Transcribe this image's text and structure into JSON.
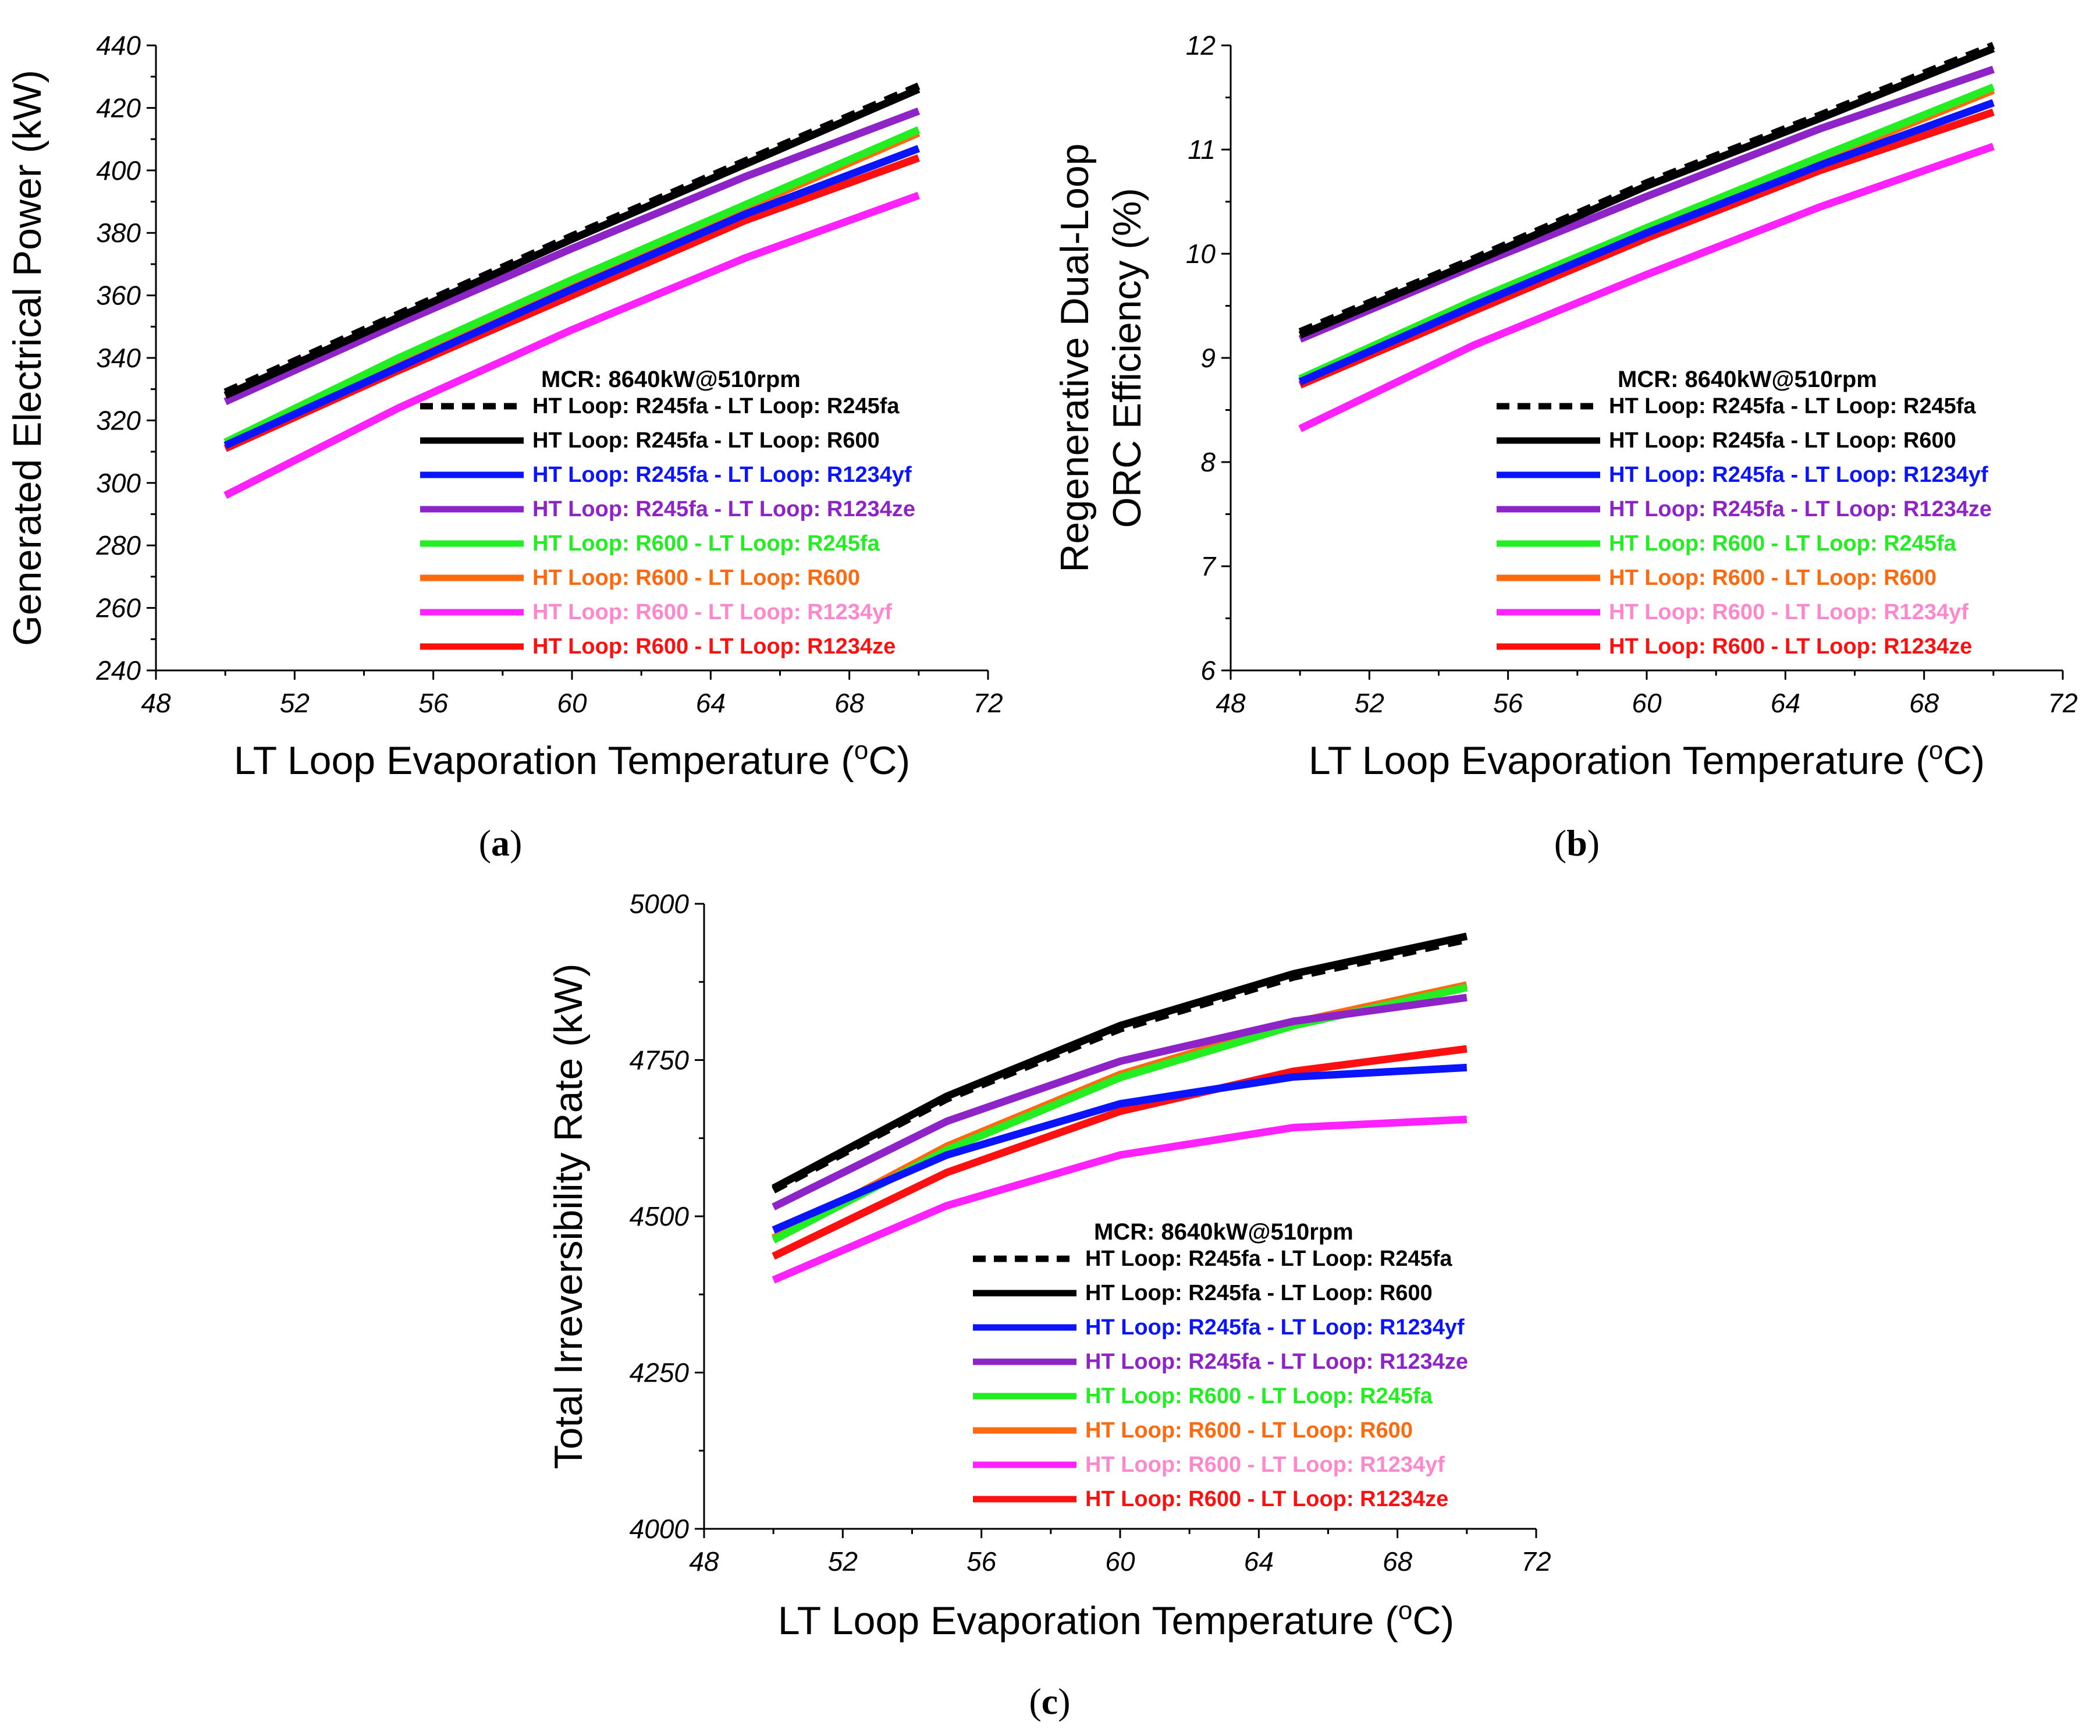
{
  "figure": {
    "legend_title": "MCR: 8640kW@510rpm",
    "xlabel_main": "LT Loop Evaporation Temperature (",
    "xlabel_sup": "o",
    "xlabel_end": "C)"
  },
  "series_style": [
    {
      "name": "HT Loop: R245fa - LT Loop: R245fa",
      "line_color": "#000000",
      "text_color": "#000000",
      "dash": true
    },
    {
      "name": "HT Loop: R245fa - LT Loop: R600",
      "line_color": "#000000",
      "text_color": "#000000",
      "dash": false
    },
    {
      "name": "HT Loop: R245fa - LT Loop: R1234yf",
      "line_color": "#0a14ff",
      "text_color": "#0a14ff",
      "dash": false
    },
    {
      "name": "HT Loop: R245fa - LT Loop: R1234ze",
      "line_color": "#8e24c8",
      "text_color": "#8e24c8",
      "dash": false
    },
    {
      "name": "HT Loop: R600 - LT Loop: R245fa",
      "line_color": "#22ee22",
      "text_color": "#22ee22",
      "dash": false
    },
    {
      "name": "HT Loop: R600 - LT Loop: R600",
      "line_color": "#ff6a10",
      "text_color": "#ff6a10",
      "dash": false
    },
    {
      "name": "HT Loop: R600 - LT Loop: R1234yf",
      "line_color": "#ff22ff",
      "text_color": "#ff88cc",
      "dash": false
    },
    {
      "name": "HT Loop: R600 - LT Loop: R1234ze",
      "line_color": "#ff1010",
      "text_color": "#ff1010",
      "dash": false
    }
  ],
  "chart_data": [
    {
      "id": "a",
      "panel_label": "a",
      "type": "line",
      "ylabel": "Generated Electrical Power (kW)",
      "xlabel": "LT Loop Evaporation Temperature (oC)",
      "xlim": [
        48,
        72
      ],
      "ylim": [
        240,
        440
      ],
      "xticks": [
        48,
        52,
        56,
        60,
        64,
        68,
        72
      ],
      "yticks": [
        240,
        260,
        280,
        300,
        320,
        340,
        360,
        380,
        400,
        420,
        440
      ],
      "x": [
        50,
        55,
        60,
        65,
        70
      ],
      "series": [
        {
          "name": "HT Loop: R245fa - LT Loop: R245fa",
          "values": [
            329,
            354,
            379,
            403,
            427
          ]
        },
        {
          "name": "HT Loop: R245fa - LT Loop: R600",
          "values": [
            328,
            353,
            378,
            402,
            426
          ]
        },
        {
          "name": "HT Loop: R245fa - LT Loop: R1234yf",
          "values": [
            312,
            337,
            362,
            386,
            407
          ]
        },
        {
          "name": "HT Loop: R245fa - LT Loop: R1234ze",
          "values": [
            326,
            351,
            375,
            398,
            419
          ]
        },
        {
          "name": "HT Loop: R600 - LT Loop: R245fa",
          "values": [
            313,
            340,
            365,
            389,
            413
          ]
        },
        {
          "name": "HT Loop: R600 - LT Loop: R600",
          "values": [
            312,
            338,
            363,
            388,
            412
          ]
        },
        {
          "name": "HT Loop: R600 - LT Loop: R1234yf",
          "values": [
            296,
            324,
            349,
            372,
            392
          ]
        },
        {
          "name": "HT Loop: R600 - LT Loop: R1234ze",
          "values": [
            311,
            336,
            360,
            384,
            404
          ]
        }
      ]
    },
    {
      "id": "b",
      "panel_label": "b",
      "type": "line",
      "ylabel_line1": "Regenerative Dual-Loop",
      "ylabel_line2": "ORC Efficiency (%)",
      "xlabel": "LT Loop Evaporation Temperature (oC)",
      "xlim": [
        48,
        72
      ],
      "ylim": [
        6,
        12
      ],
      "xticks": [
        48,
        52,
        56,
        60,
        64,
        68,
        72
      ],
      "yticks": [
        6,
        7,
        8,
        9,
        10,
        11,
        12
      ],
      "x": [
        50,
        55,
        60,
        65,
        70
      ],
      "series": [
        {
          "name": "HT Loop: R245fa - LT Loop: R245fa",
          "values": [
            9.25,
            9.95,
            10.68,
            11.33,
            12.0
          ]
        },
        {
          "name": "HT Loop: R245fa - LT Loop: R600",
          "values": [
            9.22,
            9.92,
            10.65,
            11.3,
            11.97
          ]
        },
        {
          "name": "HT Loop: R245fa - LT Loop: R1234yf",
          "values": [
            8.77,
            9.5,
            10.2,
            10.85,
            11.45
          ]
        },
        {
          "name": "HT Loop: R245fa - LT Loop: R1234ze",
          "values": [
            9.18,
            9.88,
            10.55,
            11.2,
            11.77
          ]
        },
        {
          "name": "HT Loop: R600 - LT Loop: R245fa",
          "values": [
            8.8,
            9.55,
            10.25,
            10.93,
            11.6
          ]
        },
        {
          "name": "HT Loop: R600 - LT Loop: R600",
          "values": [
            8.78,
            9.52,
            10.22,
            10.9,
            11.57
          ]
        },
        {
          "name": "HT Loop: R600 - LT Loop: R1234yf",
          "values": [
            8.32,
            9.12,
            9.8,
            10.45,
            11.03
          ]
        },
        {
          "name": "HT Loop: R600 - LT Loop: R1234ze",
          "values": [
            8.74,
            9.45,
            10.15,
            10.8,
            11.36
          ]
        }
      ]
    },
    {
      "id": "c",
      "panel_label": "c",
      "type": "line",
      "ylabel": "Total Irreversibility Rate (kW)",
      "xlabel": "LT Loop Evaporation Temperature (oC)",
      "xlim": [
        48,
        72
      ],
      "ylim": [
        4000,
        5000
      ],
      "xticks": [
        48,
        52,
        56,
        60,
        64,
        68,
        72
      ],
      "yticks": [
        4000,
        4250,
        4500,
        4750,
        5000
      ],
      "x": [
        50,
        55,
        60,
        65,
        70
      ],
      "series": [
        {
          "name": "HT Loop: R245fa - LT Loop: R245fa",
          "values": [
            4542,
            4688,
            4800,
            4883,
            4943
          ]
        },
        {
          "name": "HT Loop: R245fa - LT Loop: R600",
          "values": [
            4545,
            4692,
            4805,
            4888,
            4948
          ]
        },
        {
          "name": "HT Loop: R245fa - LT Loop: R1234yf",
          "values": [
            4478,
            4598,
            4680,
            4723,
            4738
          ]
        },
        {
          "name": "HT Loop: R245fa - LT Loop: R1234ze",
          "values": [
            4515,
            4652,
            4748,
            4812,
            4850
          ]
        },
        {
          "name": "HT Loop: R600 - LT Loop: R245fa",
          "values": [
            4462,
            4606,
            4722,
            4805,
            4866
          ]
        },
        {
          "name": "HT Loop: R600 - LT Loop: R600",
          "values": [
            4465,
            4612,
            4727,
            4810,
            4870
          ]
        },
        {
          "name": "HT Loop: R600 - LT Loop: R1234yf",
          "values": [
            4398,
            4517,
            4598,
            4642,
            4655
          ]
        },
        {
          "name": "HT Loop: R600 - LT Loop: R1234ze",
          "values": [
            4436,
            4570,
            4668,
            4732,
            4768
          ]
        }
      ]
    }
  ]
}
